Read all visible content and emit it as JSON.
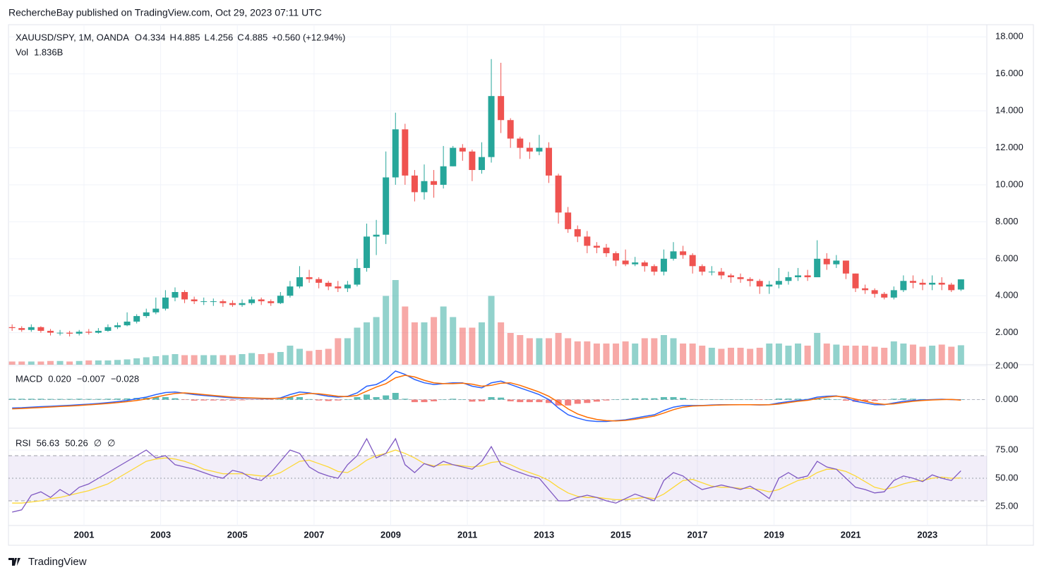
{
  "header": "RechercheBay published on TradingView.com, Oct 29, 2023 07:11 UTC",
  "footer": "TradingView",
  "chart_data": [
    {
      "type": "candlestick",
      "legend": {
        "symbol": "XAUUSD/SPY, 1M, OANDA",
        "items": [
          {
            "key": "O",
            "value": "4.334"
          },
          {
            "key": "H",
            "value": "4.885"
          },
          {
            "key": "L",
            "value": "4.256"
          },
          {
            "key": "C",
            "value": "4.885"
          }
        ],
        "change": "+0.560 (+12.94%)"
      },
      "volume_legend": {
        "name": "Vol",
        "value": "1.836B"
      },
      "up_color": "#26a69a",
      "down_color": "#ef5350",
      "xlim": [
        1999.03,
        2024.55
      ],
      "xticks": [
        2001,
        2003,
        2005,
        2007,
        2009,
        2011,
        2013,
        2015,
        2017,
        2019,
        2021,
        2023
      ],
      "ylim": [
        0.27,
        18.66
      ],
      "yticks": [
        {
          "value": 2,
          "label": "2.000"
        },
        {
          "value": 4,
          "label": "4.000"
        },
        {
          "value": 6,
          "label": "6.000"
        },
        {
          "value": 8,
          "label": "8.000"
        },
        {
          "value": 10,
          "label": "10.000"
        },
        {
          "value": 12,
          "label": "12.000"
        },
        {
          "value": 14,
          "label": "14.000"
        },
        {
          "value": 16,
          "label": "16.000"
        },
        {
          "value": 18,
          "label": "18.000"
        }
      ],
      "x": [
        1999.125,
        1999.375,
        1999.625,
        1999.875,
        2000.125,
        2000.375,
        2000.625,
        2000.875,
        2001.125,
        2001.375,
        2001.625,
        2001.875,
        2002.125,
        2002.375,
        2002.625,
        2002.875,
        2003.125,
        2003.375,
        2003.625,
        2003.875,
        2004.125,
        2004.375,
        2004.625,
        2004.875,
        2005.125,
        2005.375,
        2005.625,
        2005.875,
        2006.125,
        2006.375,
        2006.625,
        2006.875,
        2007.125,
        2007.375,
        2007.625,
        2007.875,
        2008.125,
        2008.375,
        2008.625,
        2008.875,
        2009.125,
        2009.375,
        2009.625,
        2009.875,
        2010.125,
        2010.375,
        2010.625,
        2010.875,
        2011.125,
        2011.375,
        2011.625,
        2011.875,
        2012.125,
        2012.375,
        2012.625,
        2012.875,
        2013.125,
        2013.375,
        2013.625,
        2013.875,
        2014.125,
        2014.375,
        2014.625,
        2014.875,
        2015.125,
        2015.375,
        2015.625,
        2015.875,
        2016.125,
        2016.375,
        2016.625,
        2016.875,
        2017.125,
        2017.375,
        2017.625,
        2017.875,
        2018.125,
        2018.375,
        2018.625,
        2018.875,
        2019.125,
        2019.375,
        2019.625,
        2019.875,
        2020.125,
        2020.375,
        2020.625,
        2020.875,
        2021.125,
        2021.375,
        2021.625,
        2021.875,
        2022.125,
        2022.375,
        2022.625,
        2022.875,
        2023.125,
        2023.375,
        2023.625,
        2023.875
      ],
      "open": [
        2.3,
        2.25,
        2.15,
        2.3,
        2.1,
        2.0,
        2.0,
        1.95,
        2.05,
        2.0,
        2.1,
        2.3,
        2.4,
        2.6,
        2.9,
        3.1,
        3.3,
        3.9,
        4.2,
        3.8,
        3.7,
        3.7,
        3.7,
        3.6,
        3.5,
        3.6,
        3.8,
        3.7,
        3.6,
        4.0,
        4.5,
        5.0,
        4.9,
        4.7,
        4.5,
        4.4,
        4.6,
        5.5,
        7.2,
        7.3,
        10.4,
        13.0,
        10.5,
        9.6,
        10.2,
        10.0,
        11.0,
        12.0,
        11.8,
        10.8,
        11.5,
        14.8,
        13.5,
        12.5,
        12.0,
        11.8,
        12.0,
        10.5,
        8.5,
        7.6,
        7.2,
        6.7,
        6.6,
        6.3,
        5.9,
        5.7,
        5.8,
        5.6,
        5.3,
        6.0,
        6.4,
        6.2,
        5.6,
        5.3,
        5.3,
        5.1,
        5.0,
        4.9,
        4.8,
        4.5,
        4.6,
        4.8,
        5.0,
        5.1,
        5.0,
        6.0,
        5.7,
        5.9,
        5.2,
        4.4,
        4.3,
        4.1,
        3.9,
        4.3,
        4.8,
        4.7,
        4.6,
        4.7,
        4.6,
        4.334
      ],
      "high": [
        2.45,
        2.35,
        2.45,
        2.35,
        2.2,
        2.15,
        2.1,
        2.15,
        2.2,
        2.25,
        2.45,
        2.55,
        3.1,
        3.0,
        3.3,
        3.9,
        4.3,
        4.45,
        4.3,
        3.95,
        3.9,
        3.85,
        3.8,
        3.75,
        3.8,
        3.95,
        3.9,
        3.8,
        4.2,
        4.8,
        5.6,
        5.4,
        5.0,
        4.8,
        4.8,
        4.8,
        6.0,
        7.9,
        8.1,
        11.8,
        13.9,
        13.3,
        10.8,
        11.1,
        10.8,
        12.1,
        12.1,
        12.2,
        11.9,
        12.3,
        16.8,
        16.6,
        13.6,
        12.6,
        12.3,
        12.7,
        12.3,
        10.6,
        8.8,
        7.8,
        7.5,
        6.9,
        6.8,
        6.4,
        6.5,
        6.1,
        5.9,
        5.7,
        6.5,
        6.9,
        6.7,
        6.3,
        5.7,
        5.6,
        5.5,
        5.2,
        5.2,
        5.0,
        4.9,
        4.8,
        5.5,
        5.3,
        5.5,
        5.4,
        7.0,
        6.3,
        6.2,
        5.9,
        5.2,
        4.6,
        4.4,
        4.2,
        4.5,
        5.1,
        5.1,
        4.9,
        5.1,
        5.0,
        4.7,
        4.885
      ],
      "low": [
        2.1,
        2.05,
        2.05,
        2.0,
        1.85,
        1.85,
        1.8,
        1.85,
        1.9,
        1.95,
        2.05,
        2.2,
        2.35,
        2.5,
        2.8,
        3.0,
        3.2,
        3.7,
        3.6,
        3.55,
        3.5,
        3.45,
        3.4,
        3.4,
        3.4,
        3.5,
        3.5,
        3.45,
        3.55,
        3.9,
        4.4,
        4.7,
        4.4,
        4.3,
        4.2,
        4.2,
        4.5,
        5.3,
        6.2,
        6.8,
        10.0,
        10.0,
        9.1,
        9.2,
        9.3,
        9.8,
        11.0,
        11.3,
        10.2,
        10.6,
        11.2,
        12.8,
        12.0,
        11.4,
        11.4,
        11.6,
        10.1,
        7.9,
        7.4,
        6.9,
        6.3,
        6.3,
        6.1,
        5.6,
        5.6,
        5.6,
        5.3,
        5.1,
        5.1,
        5.9,
        6.0,
        5.2,
        5.1,
        5.1,
        4.9,
        4.7,
        4.7,
        4.5,
        4.1,
        4.1,
        4.4,
        4.6,
        4.8,
        4.8,
        5.0,
        5.4,
        5.5,
        4.9,
        4.2,
        4.1,
        3.9,
        3.8,
        3.8,
        4.2,
        4.4,
        4.3,
        4.3,
        4.3,
        4.2,
        4.256
      ],
      "close": [
        2.25,
        2.15,
        2.3,
        2.1,
        2.0,
        2.0,
        1.95,
        2.05,
        2.0,
        2.1,
        2.3,
        2.4,
        2.6,
        2.9,
        3.1,
        3.3,
        3.9,
        4.2,
        3.8,
        3.7,
        3.7,
        3.7,
        3.6,
        3.5,
        3.6,
        3.8,
        3.7,
        3.6,
        4.0,
        4.5,
        5.0,
        4.9,
        4.7,
        4.5,
        4.4,
        4.6,
        5.5,
        7.2,
        7.3,
        10.4,
        13.0,
        10.5,
        9.6,
        10.2,
        10.0,
        11.0,
        12.0,
        11.8,
        10.8,
        11.5,
        14.8,
        13.5,
        12.5,
        12.0,
        11.8,
        12.0,
        10.5,
        8.5,
        7.6,
        7.2,
        6.7,
        6.6,
        6.3,
        5.9,
        5.7,
        5.8,
        5.6,
        5.3,
        6.0,
        6.4,
        6.2,
        5.6,
        5.3,
        5.3,
        5.1,
        5.0,
        4.9,
        4.8,
        4.5,
        4.6,
        4.8,
        5.0,
        5.1,
        5.0,
        6.0,
        5.7,
        5.9,
        5.2,
        4.4,
        4.3,
        4.1,
        3.9,
        4.3,
        4.8,
        4.7,
        4.6,
        4.7,
        4.6,
        4.3,
        4.885
      ],
      "volume": [
        0.3,
        0.3,
        0.3,
        0.3,
        0.35,
        0.35,
        0.3,
        0.35,
        0.4,
        0.4,
        0.4,
        0.45,
        0.5,
        0.6,
        0.7,
        0.8,
        0.9,
        1.0,
        0.9,
        0.9,
        0.9,
        0.9,
        0.9,
        0.9,
        1.0,
        1.1,
        1.0,
        1.1,
        1.2,
        1.8,
        1.5,
        1.3,
        1.4,
        1.5,
        2.5,
        2.5,
        3.5,
        4.0,
        4.5,
        6.5,
        8.0,
        5.5,
        4.0,
        4.0,
        4.5,
        5.5,
        4.5,
        3.5,
        3.5,
        4.0,
        6.5,
        4.0,
        3.0,
        2.8,
        2.5,
        2.5,
        2.5,
        3.0,
        2.5,
        2.2,
        2.2,
        2.0,
        2.0,
        2.0,
        2.2,
        2.0,
        2.5,
        2.5,
        2.8,
        2.5,
        2.0,
        2.0,
        1.8,
        1.6,
        1.5,
        1.6,
        1.6,
        1.5,
        1.6,
        2.0,
        2.0,
        1.8,
        2.0,
        1.8,
        3.0,
        2.0,
        1.9,
        1.8,
        1.8,
        1.8,
        1.7,
        1.6,
        2.2,
        2.0,
        1.9,
        1.7,
        1.8,
        1.9,
        1.7,
        1.836
      ]
    },
    {
      "type": "macd",
      "legend": {
        "name": "MACD",
        "values": [
          "0.020",
          "−0.007",
          "−0.028"
        ]
      },
      "ylim": [
        -1.7,
        2.08
      ],
      "yticks": [
        {
          "value": 2,
          "label": "2.000"
        },
        {
          "value": 0,
          "label": "0.000"
        }
      ],
      "histogram": {
        "up_color": "#26a69a",
        "down_color": "#ef5350",
        "values": [
          0.05,
          0.05,
          0.05,
          0.05,
          0.04,
          0.04,
          0.04,
          0.05,
          0.04,
          0.04,
          0.05,
          0.06,
          0.07,
          0.1,
          0.11,
          0.15,
          0.15,
          0.08,
          -0.02,
          -0.06,
          -0.05,
          -0.05,
          -0.05,
          -0.05,
          -0.04,
          -0.02,
          -0.02,
          -0.02,
          0.03,
          0.15,
          0.15,
          0.03,
          -0.05,
          -0.08,
          -0.05,
          0.02,
          0.15,
          0.3,
          0.15,
          0.25,
          0.4,
          0.05,
          -0.15,
          -0.15,
          -0.1,
          0.0,
          0.05,
          0.02,
          -0.12,
          -0.1,
          0.15,
          0.12,
          -0.1,
          -0.15,
          -0.15,
          -0.15,
          -0.2,
          -0.35,
          -0.35,
          -0.25,
          -0.2,
          -0.12,
          -0.05,
          0.02,
          0.04,
          0.07,
          0.08,
          0.08,
          0.15,
          0.15,
          0.1,
          0.03,
          0.01,
          0.02,
          0.02,
          0.01,
          0.0,
          0.0,
          -0.01,
          0.01,
          0.06,
          0.06,
          0.05,
          0.04,
          0.09,
          0.05,
          0.02,
          -0.06,
          -0.13,
          -0.1,
          -0.08,
          -0.02,
          0.05,
          0.07,
          0.05,
          0.03,
          0.02,
          0.02,
          -0.01,
          0.02
        ]
      },
      "macd": {
        "color": "#2962ff",
        "values": [
          -0.5,
          -0.48,
          -0.45,
          -0.42,
          -0.4,
          -0.37,
          -0.34,
          -0.3,
          -0.27,
          -0.23,
          -0.18,
          -0.12,
          -0.05,
          0.05,
          0.15,
          0.3,
          0.42,
          0.45,
          0.38,
          0.3,
          0.25,
          0.2,
          0.15,
          0.1,
          0.08,
          0.08,
          0.06,
          0.05,
          0.1,
          0.3,
          0.45,
          0.4,
          0.3,
          0.2,
          0.15,
          0.2,
          0.4,
          0.8,
          0.9,
          1.2,
          1.7,
          1.5,
          1.2,
          1.0,
          0.9,
          0.95,
          1.0,
          1.0,
          0.8,
          0.7,
          1.0,
          1.1,
          0.9,
          0.7,
          0.5,
          0.3,
          0.0,
          -0.5,
          -0.9,
          -1.1,
          -1.25,
          -1.3,
          -1.3,
          -1.25,
          -1.2,
          -1.1,
          -1.0,
          -0.9,
          -0.65,
          -0.45,
          -0.35,
          -0.35,
          -0.35,
          -0.32,
          -0.3,
          -0.3,
          -0.3,
          -0.3,
          -0.32,
          -0.3,
          -0.2,
          -0.12,
          -0.05,
          0.0,
          0.15,
          0.2,
          0.22,
          0.1,
          -0.1,
          -0.2,
          -0.3,
          -0.3,
          -0.2,
          -0.1,
          -0.05,
          -0.02,
          0.0,
          0.02,
          0.0,
          -0.007
        ]
      },
      "signal": {
        "color": "#ff6d00",
        "values": [
          -0.55,
          -0.53,
          -0.5,
          -0.47,
          -0.44,
          -0.41,
          -0.38,
          -0.35,
          -0.31,
          -0.27,
          -0.23,
          -0.18,
          -0.12,
          -0.05,
          0.04,
          0.15,
          0.27,
          0.37,
          0.4,
          0.36,
          0.3,
          0.25,
          0.2,
          0.15,
          0.12,
          0.1,
          0.08,
          0.07,
          0.07,
          0.15,
          0.3,
          0.37,
          0.35,
          0.28,
          0.2,
          0.18,
          0.25,
          0.5,
          0.75,
          0.95,
          1.3,
          1.45,
          1.35,
          1.15,
          1.0,
          0.95,
          0.95,
          0.98,
          0.92,
          0.8,
          0.85,
          0.98,
          1.0,
          0.85,
          0.65,
          0.45,
          0.2,
          -0.15,
          -0.55,
          -0.85,
          -1.05,
          -1.18,
          -1.25,
          -1.27,
          -1.24,
          -1.17,
          -1.08,
          -0.98,
          -0.8,
          -0.6,
          -0.45,
          -0.38,
          -0.36,
          -0.34,
          -0.32,
          -0.31,
          -0.3,
          -0.3,
          -0.31,
          -0.31,
          -0.26,
          -0.18,
          -0.1,
          -0.04,
          0.06,
          0.15,
          0.2,
          0.16,
          0.03,
          -0.1,
          -0.22,
          -0.28,
          -0.25,
          -0.17,
          -0.1,
          -0.05,
          -0.02,
          0.0,
          0.01,
          -0.028
        ]
      }
    },
    {
      "type": "rsi",
      "legend": {
        "name": "RSI",
        "values": [
          "56.63",
          "50.26",
          "∅",
          "∅"
        ]
      },
      "ylim": [
        8.1,
        94.4
      ],
      "yticks": [
        {
          "value": 75,
          "label": "75.00"
        },
        {
          "value": 50,
          "label": "50.00"
        },
        {
          "value": 25,
          "label": "25.00"
        }
      ],
      "bands": [
        70,
        50,
        30
      ],
      "band_color": "rgba(126,87,194,0.1)",
      "rsi": {
        "color": "#7e57c2",
        "values": [
          20,
          22,
          35,
          38,
          33,
          40,
          35,
          42,
          45,
          50,
          55,
          60,
          65,
          70,
          75,
          68,
          70,
          62,
          60,
          58,
          55,
          52,
          50,
          57,
          55,
          50,
          48,
          55,
          65,
          75,
          72,
          60,
          55,
          52,
          50,
          62,
          70,
          85,
          68,
          72,
          85,
          62,
          55,
          63,
          60,
          65,
          62,
          60,
          58,
          65,
          78,
          62,
          58,
          55,
          52,
          50,
          40,
          30,
          30,
          33,
          35,
          33,
          30,
          28,
          32,
          36,
          33,
          30,
          48,
          55,
          52,
          45,
          40,
          42,
          44,
          42,
          40,
          43,
          38,
          32,
          50,
          55,
          50,
          52,
          65,
          60,
          58,
          50,
          42,
          40,
          37,
          38,
          48,
          52,
          50,
          47,
          53,
          50,
          48,
          56.63
        ]
      },
      "ma": {
        "color": "#fdd835",
        "values": [
          28,
          28,
          29,
          30,
          32,
          33,
          35,
          37,
          39,
          42,
          45,
          50,
          55,
          60,
          65,
          67,
          68,
          67,
          65,
          62,
          58,
          56,
          54,
          54,
          54,
          53,
          52,
          52,
          55,
          60,
          65,
          66,
          63,
          60,
          56,
          55,
          60,
          66,
          70,
          72,
          75,
          72,
          68,
          63,
          61,
          62,
          62,
          61,
          60,
          61,
          64,
          65,
          62,
          58,
          55,
          52,
          48,
          42,
          37,
          34,
          33,
          33,
          32,
          31,
          31,
          32,
          33,
          32,
          36,
          42,
          48,
          49,
          46,
          43,
          42,
          42,
          41,
          41,
          40,
          38,
          40,
          44,
          48,
          50,
          55,
          58,
          58,
          56,
          52,
          47,
          42,
          40,
          42,
          45,
          47,
          48,
          50,
          51,
          50,
          50.26
        ]
      }
    }
  ]
}
